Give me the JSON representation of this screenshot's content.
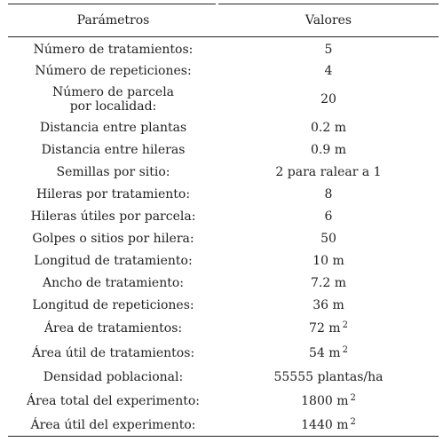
{
  "table": {
    "headers": {
      "param": "Parámetros",
      "value": "Valores"
    },
    "rows": [
      {
        "param": "Número de tratamientos:",
        "value": "5"
      },
      {
        "param": "Número de repeticiones:",
        "value": "4"
      },
      {
        "param": "Número de parcela por localidad:",
        "value": "20"
      },
      {
        "param": "Distancia entre plantas",
        "value": "0.2 m"
      },
      {
        "param": "Distancia entre hileras",
        "value": "0.9 m"
      },
      {
        "param": "Semillas por sitio:",
        "value": "2 para ralear a 1"
      },
      {
        "param": "Hileras por tratamiento:",
        "value": "8"
      },
      {
        "param": "Hileras útiles por parcela:",
        "value": "6"
      },
      {
        "param": "Golpes o sitios por hilera:",
        "value": "50"
      },
      {
        "param": "Longitud de tratamiento:",
        "value": "10 m"
      },
      {
        "param": "Ancho de tratamiento:",
        "value": "7.2 m"
      },
      {
        "param": "Longitud de repeticiones:",
        "value": "36 m"
      },
      {
        "param": "Área de tratamientos:",
        "value": "72 m",
        "sup": "2"
      },
      {
        "param": "Área útil de tratamientos:",
        "value": "54 m",
        "sup": "2"
      },
      {
        "param": "Densidad poblacional:",
        "value": "55555 plantas/ha"
      },
      {
        "param": "Área total del experimento:",
        "value": "1800 m",
        "sup": "2"
      },
      {
        "param": "Área útil del experimento:",
        "value": "1440 m",
        "sup": "2"
      }
    ]
  }
}
